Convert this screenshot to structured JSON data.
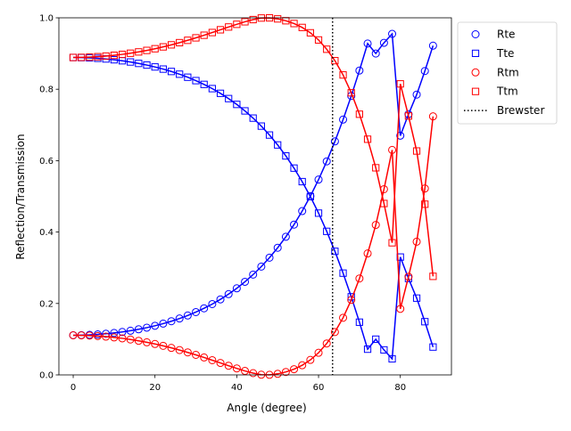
{
  "chart_data": {
    "type": "line",
    "title": "",
    "xlabel": "Angle (degree)",
    "ylabel": "Reflection/Transmission",
    "xlim": [
      -3.5,
      92.5
    ],
    "ylim": [
      0,
      1
    ],
    "xticks": [
      0,
      20,
      40,
      60,
      80
    ],
    "yticks": [
      0.0,
      0.2,
      0.4,
      0.6,
      0.8,
      1.0
    ],
    "xtick_labels": [
      "0",
      "20",
      "40",
      "60",
      "80"
    ],
    "ytick_labels": [
      "0.0",
      "0.2",
      "0.4",
      "0.6",
      "0.8",
      "1.0"
    ],
    "grid": false,
    "legend_position": "outside-top-right",
    "x": [
      0,
      2,
      4,
      6,
      8,
      10,
      12,
      14,
      16,
      18,
      20,
      22,
      24,
      26,
      28,
      30,
      32,
      34,
      36,
      38,
      40,
      42,
      44,
      46,
      48,
      50,
      52,
      54,
      56,
      58,
      60,
      62,
      64,
      66,
      68,
      70,
      72,
      74,
      76,
      78,
      80,
      82,
      84,
      86,
      88
    ],
    "series": [
      {
        "name": "Rte",
        "color": "#0000ff",
        "marker": "circle",
        "values": [
          0.1111,
          0.1114,
          0.1121,
          0.1134,
          0.1152,
          0.1175,
          0.1203,
          0.1237,
          0.1277,
          0.1323,
          0.1376,
          0.1436,
          0.1503,
          0.1579,
          0.1664,
          0.1759,
          0.1865,
          0.1983,
          0.2115,
          0.2262,
          0.2425,
          0.2607,
          0.2809,
          0.3033,
          0.3283,
          0.356,
          0.3868,
          0.4209,
          0.4588,
          0.5007,
          0.547,
          0.598,
          0.6539,
          0.715,
          0.7812,
          0.8524,
          0.928,
          0.9,
          0.93,
          0.955,
          0.67,
          0.73,
          0.785,
          0.851,
          0.922
        ]
      },
      {
        "name": "Tte",
        "color": "#0000ff",
        "marker": "square",
        "values": [
          0.8889,
          0.8886,
          0.8879,
          0.8866,
          0.8848,
          0.8825,
          0.8797,
          0.8763,
          0.8723,
          0.8677,
          0.8624,
          0.8564,
          0.8497,
          0.8421,
          0.8336,
          0.8241,
          0.8135,
          0.8017,
          0.7885,
          0.7738,
          0.7575,
          0.7393,
          0.7191,
          0.6967,
          0.6717,
          0.644,
          0.6132,
          0.5791,
          0.5412,
          0.4993,
          0.453,
          0.402,
          0.3461,
          0.285,
          0.2188,
          0.1476,
          0.072,
          0.1,
          0.07,
          0.045,
          0.33,
          0.27,
          0.215,
          0.149,
          0.078
        ]
      },
      {
        "name": "Rtm",
        "color": "#ff0000",
        "marker": "circle",
        "values": [
          0.1111,
          0.1108,
          0.1101,
          0.1089,
          0.1072,
          0.105,
          0.1024,
          0.0992,
          0.0955,
          0.0913,
          0.0866,
          0.0814,
          0.0757,
          0.0696,
          0.063,
          0.0561,
          0.0488,
          0.0412,
          0.0335,
          0.0257,
          0.0182,
          0.0111,
          0.005,
          0.0006,
          0.0002,
          0.003,
          0.0082,
          0.016,
          0.027,
          0.042,
          0.062,
          0.088,
          0.12,
          0.16,
          0.21,
          0.27,
          0.34,
          0.42,
          0.52,
          0.63,
          0.185,
          0.275,
          0.373,
          0.522,
          0.724
        ]
      },
      {
        "name": "Ttm",
        "color": "#ff0000",
        "marker": "square",
        "values": [
          0.8889,
          0.8892,
          0.8899,
          0.8911,
          0.8928,
          0.895,
          0.8976,
          0.9008,
          0.9045,
          0.9087,
          0.9134,
          0.9186,
          0.9243,
          0.9304,
          0.937,
          0.9439,
          0.9512,
          0.9588,
          0.9665,
          0.9743,
          0.9818,
          0.9889,
          0.995,
          0.9994,
          0.9998,
          0.997,
          0.9918,
          0.984,
          0.973,
          0.958,
          0.938,
          0.912,
          0.88,
          0.84,
          0.79,
          0.73,
          0.66,
          0.58,
          0.48,
          0.37,
          0.815,
          0.725,
          0.627,
          0.478,
          0.276
        ]
      }
    ],
    "reference_lines": [
      {
        "name": "Brewster",
        "orientation": "vertical",
        "x": 63.43,
        "style": "dotted",
        "color": "#000000"
      }
    ]
  }
}
